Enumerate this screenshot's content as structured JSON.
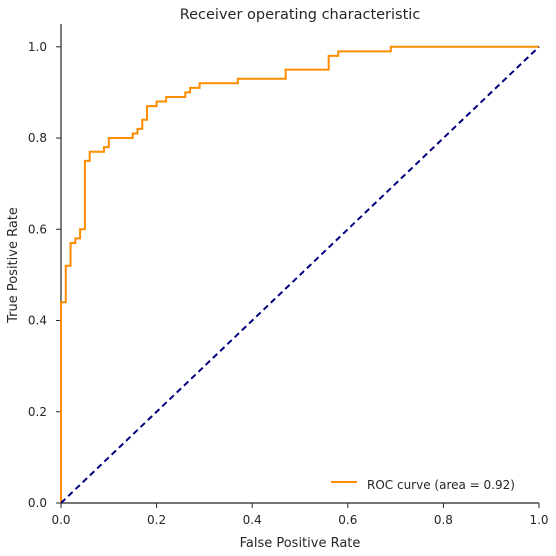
{
  "chart_data": {
    "type": "line",
    "title": "Receiver operating characteristic",
    "xlabel": "False Positive Rate",
    "ylabel": "True Positive Rate",
    "xlim": [
      0.0,
      1.0
    ],
    "ylim": [
      0.0,
      1.05
    ],
    "x_ticks": [
      "0.0",
      "0.2",
      "0.4",
      "0.6",
      "0.8",
      "1.0"
    ],
    "y_ticks": [
      "0.0",
      "0.2",
      "0.4",
      "0.6",
      "0.8",
      "1.0"
    ],
    "grid": false,
    "legend_position": "lower-right",
    "series": [
      {
        "name": "ROC curve (area = 0.92)",
        "color": "#ff8c00",
        "style": "solid",
        "step": true,
        "points": [
          [
            0.0,
            0.0
          ],
          [
            0.0,
            0.44
          ],
          [
            0.01,
            0.44
          ],
          [
            0.01,
            0.52
          ],
          [
            0.02,
            0.52
          ],
          [
            0.02,
            0.57
          ],
          [
            0.03,
            0.57
          ],
          [
            0.03,
            0.58
          ],
          [
            0.04,
            0.58
          ],
          [
            0.04,
            0.6
          ],
          [
            0.05,
            0.6
          ],
          [
            0.05,
            0.75
          ],
          [
            0.06,
            0.75
          ],
          [
            0.06,
            0.77
          ],
          [
            0.09,
            0.77
          ],
          [
            0.09,
            0.78
          ],
          [
            0.1,
            0.78
          ],
          [
            0.1,
            0.8
          ],
          [
            0.15,
            0.8
          ],
          [
            0.15,
            0.81
          ],
          [
            0.16,
            0.81
          ],
          [
            0.16,
            0.82
          ],
          [
            0.17,
            0.82
          ],
          [
            0.17,
            0.84
          ],
          [
            0.18,
            0.84
          ],
          [
            0.18,
            0.87
          ],
          [
            0.2,
            0.87
          ],
          [
            0.2,
            0.88
          ],
          [
            0.22,
            0.88
          ],
          [
            0.22,
            0.89
          ],
          [
            0.26,
            0.89
          ],
          [
            0.26,
            0.9
          ],
          [
            0.27,
            0.9
          ],
          [
            0.27,
            0.91
          ],
          [
            0.29,
            0.91
          ],
          [
            0.29,
            0.92
          ],
          [
            0.37,
            0.92
          ],
          [
            0.37,
            0.93
          ],
          [
            0.47,
            0.93
          ],
          [
            0.47,
            0.95
          ],
          [
            0.56,
            0.95
          ],
          [
            0.56,
            0.98
          ],
          [
            0.58,
            0.98
          ],
          [
            0.58,
            0.99
          ],
          [
            0.69,
            0.99
          ],
          [
            0.69,
            1.0
          ],
          [
            1.0,
            1.0
          ]
        ]
      },
      {
        "name": "",
        "color": "#000080",
        "style": "dashed",
        "step": false,
        "points": [
          [
            0.0,
            0.0
          ],
          [
            1.0,
            1.0
          ]
        ]
      }
    ]
  }
}
